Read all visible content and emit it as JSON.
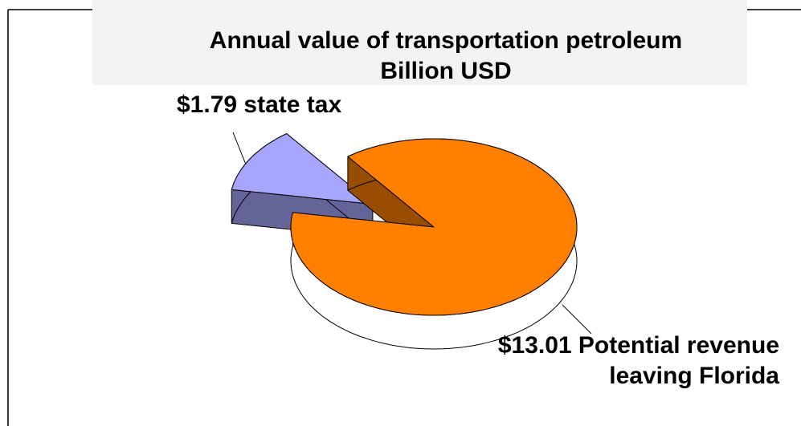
{
  "chart_data": {
    "type": "pie",
    "title": "Annual value of transportation petroleum",
    "subtitle": "Billion USD",
    "values": [
      1.79,
      13.01
    ],
    "value_labels": [
      "$1.79 state tax",
      "$13.01 Potential revenue leaving Florida"
    ],
    "colors": [
      "#a6a6ff",
      "#ff8000"
    ]
  }
}
